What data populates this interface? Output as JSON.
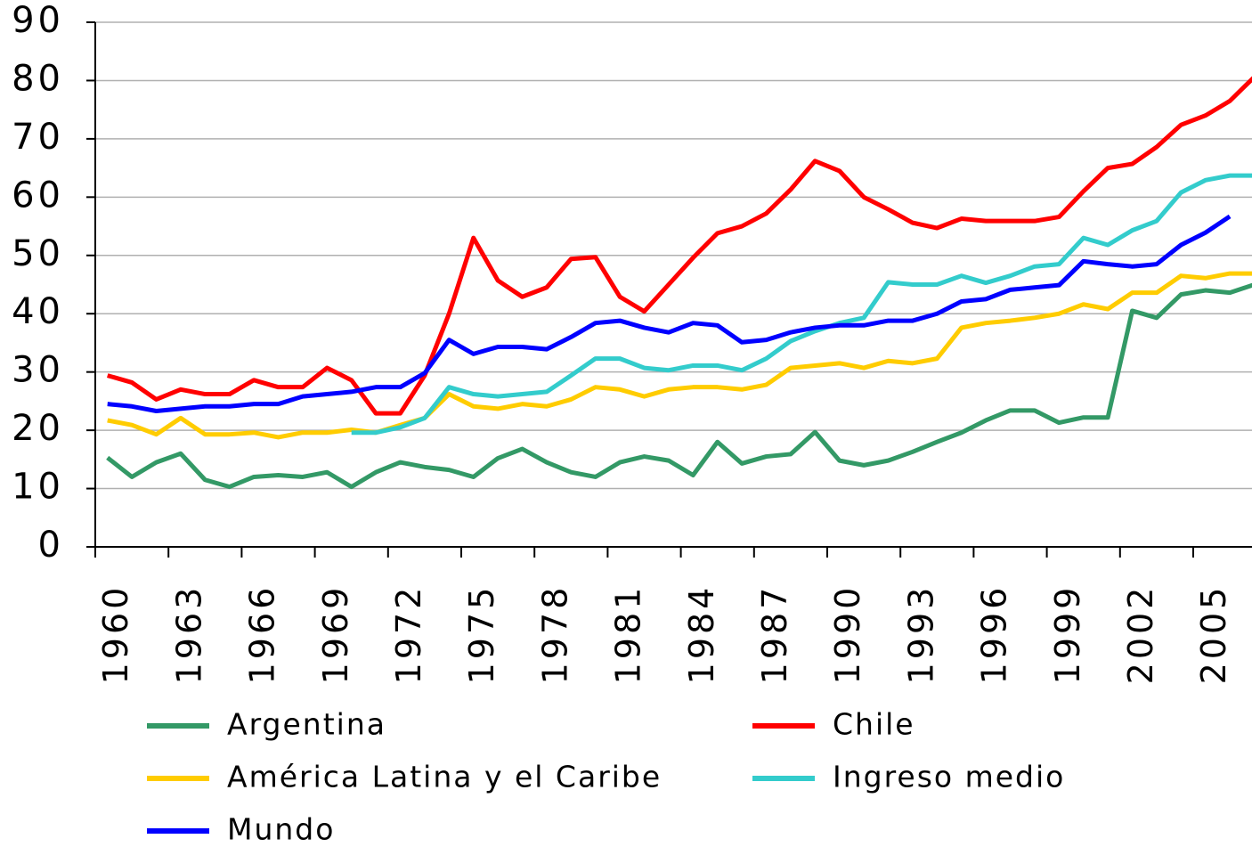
{
  "chart_data": {
    "type": "line",
    "categories": [
      "1960",
      null,
      null,
      "1963",
      null,
      null,
      "1966",
      null,
      null,
      "1969",
      null,
      null,
      "1972",
      null,
      null,
      "1975",
      null,
      null,
      "1978",
      null,
      null,
      "1981",
      null,
      null,
      "1984",
      null,
      null,
      "1987",
      null,
      null,
      "1990",
      null,
      null,
      "1993",
      null,
      null,
      "1996",
      null,
      null,
      "1999",
      null,
      null,
      "2002",
      null,
      null,
      "2005",
      null,
      null
    ],
    "ylim": [
      0,
      90
    ],
    "yticks": [
      0,
      10,
      20,
      30,
      40,
      50,
      60,
      70,
      80,
      90
    ],
    "grid": true,
    "series": [
      {
        "name": "Argentina",
        "color": "#339966",
        "values": [
          15.3,
          12,
          14.5,
          16,
          11.5,
          10.3,
          12,
          12.3,
          12,
          12.8,
          10.3,
          12.8,
          14.5,
          13.7,
          13.2,
          12,
          15.2,
          16.8,
          14.5,
          12.8,
          12,
          14.5,
          15.5,
          14.8,
          12.3,
          18,
          14.3,
          15.5,
          15.9,
          19.7,
          14.8,
          14,
          14.8,
          16.3,
          18,
          19.6,
          21.7,
          23.4,
          23.4,
          21.3,
          22.2,
          22.2,
          40.5,
          39.3,
          43.3,
          44,
          43.6,
          45
        ]
      },
      {
        "name": "Chile",
        "color": "#ff0000",
        "values": [
          29.4,
          28.2,
          25.3,
          27,
          26.2,
          26.2,
          28.6,
          27.4,
          27.4,
          30.7,
          28.6,
          22.9,
          22.9,
          29.4,
          40,
          53,
          45.7,
          42.9,
          44.5,
          49.4,
          49.7,
          42.9,
          40.4,
          45,
          49.6,
          53.8,
          55,
          57.2,
          61.3,
          66.2,
          64.5,
          60,
          57.9,
          55.6,
          54.7,
          56.3,
          55.9,
          55.9,
          55.9,
          56.6,
          61,
          65,
          65.7,
          68.6,
          72.4,
          74,
          76.5,
          80.6
        ]
      },
      {
        "name": "América Latina y el Caribe",
        "color": "#ffcc00",
        "values": [
          21.7,
          20.9,
          19.3,
          22.1,
          19.3,
          19.3,
          19.6,
          18.8,
          19.6,
          19.6,
          20.1,
          19.6,
          20.9,
          22.1,
          26.2,
          24.1,
          23.7,
          24.5,
          24.1,
          25.3,
          27.4,
          27,
          25.8,
          27,
          27.4,
          27.4,
          27,
          27.8,
          30.7,
          31.1,
          31.5,
          30.7,
          31.9,
          31.5,
          32.3,
          37.6,
          38.4,
          38.8,
          39.3,
          40,
          41.6,
          40.8,
          43.6,
          43.6,
          46.5,
          46.1,
          46.9,
          46.9
        ]
      },
      {
        "name": "Ingreso medio",
        "color": "#33cccc",
        "values": [
          null,
          null,
          null,
          null,
          null,
          null,
          null,
          null,
          null,
          null,
          19.6,
          19.6,
          20.5,
          22.1,
          27.4,
          26.2,
          25.8,
          26.2,
          26.6,
          29.4,
          32.3,
          32.3,
          30.7,
          30.3,
          31.1,
          31.1,
          30.3,
          32.3,
          35.3,
          37,
          38.4,
          39.3,
          45.4,
          45,
          45,
          46.5,
          45.3,
          46.5,
          48.1,
          48.5,
          53,
          51.8,
          54.3,
          55.9,
          60.8,
          62.9,
          63.7,
          63.7
        ]
      },
      {
        "name": "Mundo",
        "color": "#0000ff",
        "values": [
          24.5,
          24.1,
          23.3,
          23.7,
          24.1,
          24.1,
          24.5,
          24.5,
          25.8,
          26.2,
          26.6,
          27.4,
          27.4,
          29.8,
          35.5,
          33.1,
          34.3,
          34.3,
          33.9,
          36,
          38.4,
          38.8,
          37.6,
          36.8,
          38.4,
          38,
          35.1,
          35.5,
          36.8,
          37.6,
          38,
          38,
          38.8,
          38.8,
          40,
          42.1,
          42.5,
          44.1,
          44.5,
          44.9,
          49,
          48.5,
          48.1,
          48.5,
          51.8,
          53.9,
          56.7,
          null
        ]
      }
    ]
  }
}
